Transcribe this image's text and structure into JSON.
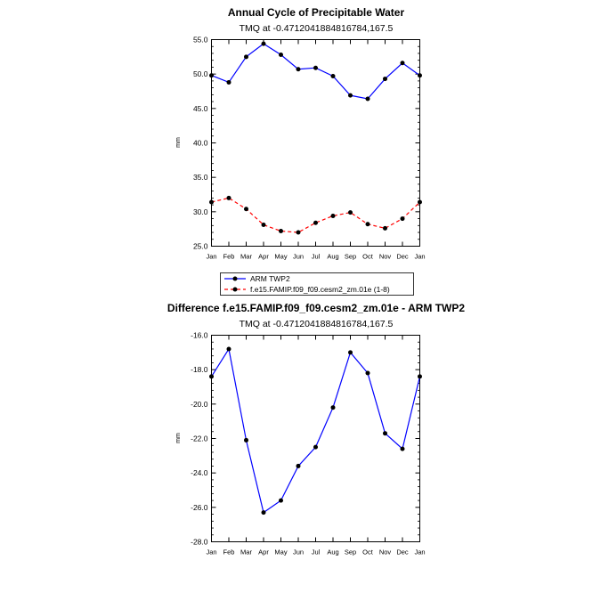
{
  "chart_data": [
    {
      "type": "line",
      "title": "Annual Cycle of Precipitable Water",
      "subtitle": "TMQ at -0.4712041884816784,167.5",
      "xlabel": "",
      "ylabel": "mm",
      "categories": [
        "Jan",
        "Feb",
        "Mar",
        "Apr",
        "May",
        "Jun",
        "Jul",
        "Aug",
        "Sep",
        "Oct",
        "Nov",
        "Dec",
        "Jan"
      ],
      "ylim": [
        25.0,
        55.0
      ],
      "yticks": [
        "25.0",
        "30.0",
        "35.0",
        "40.0",
        "45.0",
        "50.0",
        "55.0"
      ],
      "legend_position": "bottom",
      "series": [
        {
          "name": "ARM TWP2",
          "color": "#0000ff",
          "dash": "solid",
          "values": [
            49.8,
            48.8,
            52.5,
            54.4,
            52.8,
            50.7,
            50.9,
            49.7,
            46.9,
            46.4,
            49.3,
            51.6,
            49.8
          ]
        },
        {
          "name": "f.e15.FAMIP.f09_f09.cesm2_zm.01e (1-8)",
          "color": "#ff0000",
          "dash": "dashed",
          "values": [
            31.4,
            32.0,
            30.4,
            28.1,
            27.2,
            27.0,
            28.4,
            29.4,
            29.9,
            28.2,
            27.6,
            29.0,
            31.4
          ]
        }
      ]
    },
    {
      "type": "line",
      "title": "Difference f.e15.FAMIP.f09_f09.cesm2_zm.01e - ARM TWP2",
      "subtitle": "TMQ at -0.4712041884816784,167.5",
      "xlabel": "",
      "ylabel": "mm",
      "categories": [
        "Jan",
        "Feb",
        "Mar",
        "Apr",
        "May",
        "Jun",
        "Jul",
        "Aug",
        "Sep",
        "Oct",
        "Nov",
        "Dec",
        "Jan"
      ],
      "ylim": [
        -28.0,
        -16.0
      ],
      "yticks": [
        "-28.0",
        "-26.0",
        "-24.0",
        "-22.0",
        "-20.0",
        "-18.0",
        "-16.0"
      ],
      "series": [
        {
          "name": "Difference",
          "color": "#0000ff",
          "dash": "solid",
          "values": [
            -18.4,
            -16.8,
            -22.1,
            -26.3,
            -25.6,
            -23.6,
            -22.5,
            -20.2,
            -17.0,
            -18.2,
            -21.7,
            -22.6,
            -18.4
          ]
        }
      ]
    }
  ]
}
